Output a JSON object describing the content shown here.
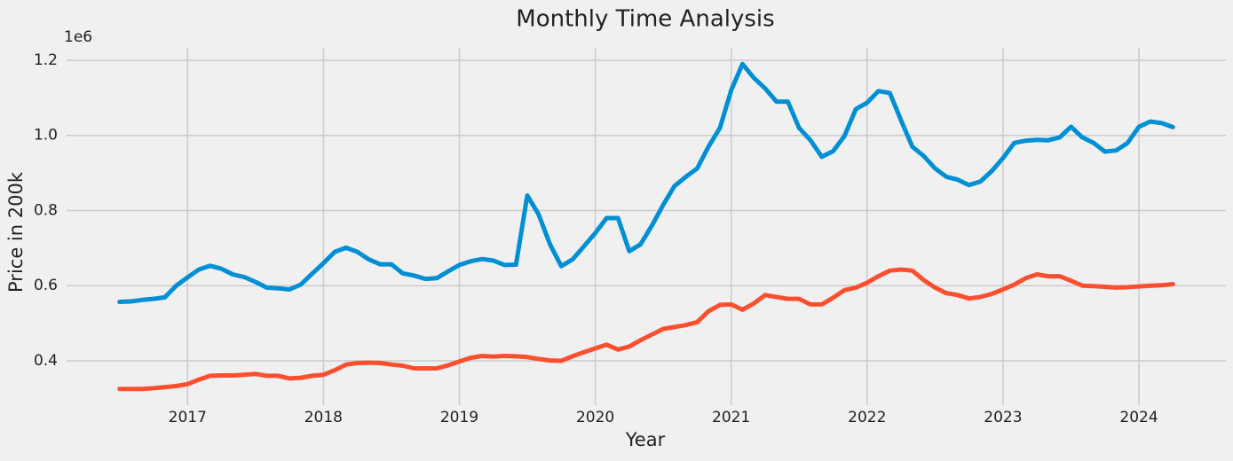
{
  "chart_data": {
    "type": "line",
    "title": "Monthly Time Analysis",
    "x_label": "Year",
    "y_label": "Price in 200k",
    "y_offset_text": "1e6",
    "x": [
      2016.5,
      2016.583,
      2016.667,
      2016.75,
      2016.833,
      2016.917,
      2017,
      2017.083,
      2017.167,
      2017.25,
      2017.333,
      2017.417,
      2017.5,
      2017.583,
      2017.667,
      2017.75,
      2017.833,
      2017.917,
      2018,
      2018.083,
      2018.167,
      2018.25,
      2018.333,
      2018.417,
      2018.5,
      2018.583,
      2018.667,
      2018.75,
      2018.833,
      2018.917,
      2019,
      2019.083,
      2019.167,
      2019.25,
      2019.333,
      2019.417,
      2019.5,
      2019.583,
      2019.667,
      2019.75,
      2019.833,
      2019.917,
      2020,
      2020.083,
      2020.167,
      2020.25,
      2020.333,
      2020.417,
      2020.5,
      2020.583,
      2020.667,
      2020.75,
      2020.833,
      2020.917,
      2021,
      2021.083,
      2021.167,
      2021.25,
      2021.333,
      2021.417,
      2021.5,
      2021.583,
      2021.667,
      2021.75,
      2021.833,
      2021.917,
      2022,
      2022.083,
      2022.167,
      2022.25,
      2022.333,
      2022.417,
      2022.5,
      2022.583,
      2022.667,
      2022.75,
      2022.833,
      2022.917,
      2023,
      2023.083,
      2023.167,
      2023.25,
      2023.333,
      2023.417,
      2023.5,
      2023.583,
      2023.667,
      2023.75,
      2023.833,
      2023.917,
      2024,
      2024.083,
      2024.167,
      2024.25
    ],
    "series": [
      {
        "color": "#008fd5",
        "values": [
          0.557,
          0.558,
          0.562,
          0.565,
          0.569,
          0.6,
          0.622,
          0.643,
          0.653,
          0.645,
          0.63,
          0.623,
          0.61,
          0.595,
          0.593,
          0.59,
          0.603,
          0.632,
          0.66,
          0.69,
          0.701,
          0.69,
          0.67,
          0.657,
          0.657,
          0.633,
          0.627,
          0.618,
          0.62,
          0.638,
          0.655,
          0.665,
          0.671,
          0.667,
          0.655,
          0.656,
          0.84,
          0.79,
          0.71,
          0.652,
          0.67,
          0.705,
          0.74,
          0.78,
          0.78,
          0.692,
          0.71,
          0.76,
          0.815,
          0.865,
          0.89,
          0.912,
          0.97,
          1.02,
          1.12,
          1.19,
          1.153,
          1.125,
          1.09,
          1.09,
          1.02,
          0.987,
          0.943,
          0.958,
          0.998,
          1.07,
          1.087,
          1.118,
          1.113,
          1.04,
          0.97,
          0.945,
          0.912,
          0.89,
          0.882,
          0.868,
          0.877,
          0.905,
          0.94,
          0.98,
          0.986,
          0.988,
          0.987,
          0.995,
          1.023,
          0.995,
          0.98,
          0.957,
          0.96,
          0.98,
          1.023,
          1.037,
          1.033,
          1.022
        ]
      },
      {
        "color": "#fc4f30",
        "values": [
          0.325,
          0.325,
          0.325,
          0.327,
          0.33,
          0.333,
          0.338,
          0.35,
          0.36,
          0.361,
          0.361,
          0.363,
          0.365,
          0.36,
          0.36,
          0.353,
          0.355,
          0.36,
          0.363,
          0.375,
          0.39,
          0.394,
          0.395,
          0.394,
          0.39,
          0.387,
          0.38,
          0.38,
          0.38,
          0.388,
          0.398,
          0.408,
          0.413,
          0.411,
          0.413,
          0.412,
          0.41,
          0.405,
          0.401,
          0.4,
          0.412,
          0.423,
          0.433,
          0.443,
          0.43,
          0.438,
          0.455,
          0.47,
          0.485,
          0.49,
          0.495,
          0.503,
          0.532,
          0.549,
          0.55,
          0.536,
          0.553,
          0.575,
          0.57,
          0.565,
          0.565,
          0.55,
          0.55,
          0.568,
          0.588,
          0.595,
          0.608,
          0.625,
          0.64,
          0.643,
          0.64,
          0.615,
          0.595,
          0.58,
          0.575,
          0.566,
          0.57,
          0.578,
          0.59,
          0.603,
          0.62,
          0.63,
          0.625,
          0.625,
          0.613,
          0.6,
          0.599,
          0.597,
          0.595,
          0.596,
          0.598,
          0.6,
          0.601,
          0.604
        ]
      }
    ],
    "xlim": [
      2016.11,
      2024.64
    ],
    "xticks": [
      2017,
      2018,
      2019,
      2020,
      2021,
      2022,
      2023,
      2024
    ],
    "ylim": [
      0.282,
      1.233
    ],
    "yticks": [
      0.4,
      0.6,
      0.8,
      {
        "value": 1,
        "label": "1.0"
      },
      1.2
    ],
    "grid": true
  }
}
